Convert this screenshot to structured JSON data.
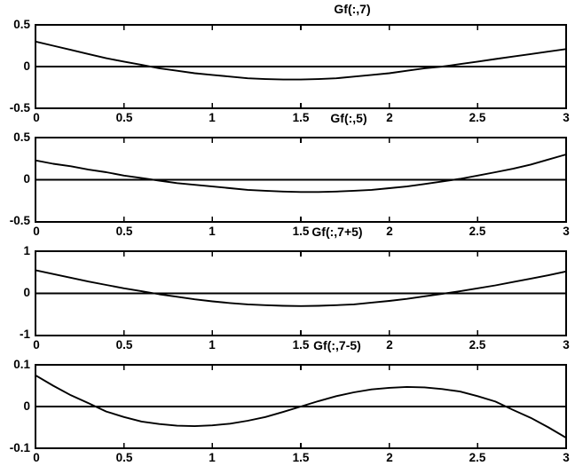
{
  "figure": {
    "background": "#ffffff",
    "ink_color": "#000000"
  },
  "chart_data": [
    {
      "type": "line",
      "title": "Gf(:,7)",
      "xlabel": "",
      "ylabel": "",
      "xlim": [
        0,
        3
      ],
      "ylim": [
        -0.5,
        0.5
      ],
      "x_ticks": [
        0,
        0.5,
        1,
        1.5,
        2,
        2.5,
        3
      ],
      "x_tick_labels": [
        "0",
        "0.5",
        "1",
        "1.5",
        "2",
        "2.5",
        "3"
      ],
      "y_ticks": [
        0.5,
        0,
        -0.5
      ],
      "y_tick_labels": [
        "0.5",
        "0",
        "-0.5"
      ],
      "zero_line": true,
      "grid": false,
      "x": [
        0,
        0.1,
        0.2,
        0.3,
        0.4,
        0.5,
        0.6,
        0.7,
        0.8,
        0.9,
        1.0,
        1.1,
        1.2,
        1.3,
        1.4,
        1.5,
        1.6,
        1.7,
        1.8,
        1.9,
        2.0,
        2.1,
        2.2,
        2.3,
        2.4,
        2.5,
        2.6,
        2.7,
        2.8,
        2.9,
        3.0
      ],
      "y": [
        0.3,
        0.25,
        0.2,
        0.15,
        0.1,
        0.06,
        0.02,
        -0.02,
        -0.05,
        -0.08,
        -0.1,
        -0.12,
        -0.14,
        -0.15,
        -0.155,
        -0.155,
        -0.15,
        -0.14,
        -0.12,
        -0.1,
        -0.08,
        -0.05,
        -0.02,
        0.0,
        0.03,
        0.06,
        0.09,
        0.12,
        0.15,
        0.18,
        0.21
      ]
    },
    {
      "type": "line",
      "title": "Gf(:,5)",
      "xlabel": "",
      "ylabel": "",
      "xlim": [
        0,
        3
      ],
      "ylim": [
        -0.5,
        0.5
      ],
      "x_ticks": [
        0,
        0.5,
        1,
        1.5,
        2,
        2.5,
        3
      ],
      "x_tick_labels": [
        "0",
        "0.5",
        "1",
        "1.5",
        "2",
        "2.5",
        "3"
      ],
      "y_ticks": [
        0.5,
        0,
        -0.5
      ],
      "y_tick_labels": [
        "0.5",
        "0",
        "-0.5"
      ],
      "zero_line": true,
      "grid": false,
      "x": [
        0,
        0.1,
        0.2,
        0.3,
        0.4,
        0.5,
        0.6,
        0.7,
        0.8,
        0.9,
        1.0,
        1.1,
        1.2,
        1.3,
        1.4,
        1.5,
        1.6,
        1.7,
        1.8,
        1.9,
        2.0,
        2.1,
        2.2,
        2.3,
        2.4,
        2.5,
        2.6,
        2.7,
        2.8,
        2.9,
        3.0
      ],
      "y": [
        0.23,
        0.19,
        0.16,
        0.12,
        0.09,
        0.05,
        0.02,
        -0.01,
        -0.04,
        -0.06,
        -0.08,
        -0.1,
        -0.12,
        -0.13,
        -0.14,
        -0.145,
        -0.145,
        -0.14,
        -0.13,
        -0.12,
        -0.1,
        -0.08,
        -0.05,
        -0.02,
        0.01,
        0.05,
        0.09,
        0.13,
        0.18,
        0.24,
        0.3
      ]
    },
    {
      "type": "line",
      "title": "Gf(:,7+5)",
      "xlabel": "",
      "ylabel": "",
      "xlim": [
        0,
        3
      ],
      "ylim": [
        -1,
        1
      ],
      "x_ticks": [
        0,
        0.5,
        1,
        1.5,
        2,
        2.5,
        3
      ],
      "x_tick_labels": [
        "0",
        "0.5",
        "1",
        "1.5",
        "2",
        "2.5",
        "3"
      ],
      "y_ticks": [
        1,
        0,
        -1
      ],
      "y_tick_labels": [
        "1",
        "0",
        "-1"
      ],
      "zero_line": true,
      "grid": false,
      "x": [
        0,
        0.1,
        0.2,
        0.3,
        0.4,
        0.5,
        0.6,
        0.7,
        0.8,
        0.9,
        1.0,
        1.1,
        1.2,
        1.3,
        1.4,
        1.5,
        1.6,
        1.7,
        1.8,
        1.9,
        2.0,
        2.1,
        2.2,
        2.3,
        2.4,
        2.5,
        2.6,
        2.7,
        2.8,
        2.9,
        3.0
      ],
      "y": [
        0.55,
        0.46,
        0.37,
        0.28,
        0.2,
        0.12,
        0.05,
        -0.02,
        -0.08,
        -0.14,
        -0.19,
        -0.23,
        -0.26,
        -0.28,
        -0.295,
        -0.3,
        -0.295,
        -0.28,
        -0.26,
        -0.22,
        -0.18,
        -0.13,
        -0.07,
        -0.01,
        0.05,
        0.12,
        0.19,
        0.27,
        0.35,
        0.43,
        0.52
      ]
    },
    {
      "type": "line",
      "title": "Gf(:,7-5)",
      "xlabel": "",
      "ylabel": "",
      "xlim": [
        0,
        3
      ],
      "ylim": [
        -0.1,
        0.1
      ],
      "x_ticks": [
        0,
        0.5,
        1,
        1.5,
        2,
        2.5,
        3
      ],
      "x_tick_labels": [
        "0",
        "0.5",
        "1",
        "1.5",
        "2",
        "2.5",
        "3"
      ],
      "y_ticks": [
        0.1,
        0,
        -0.1
      ],
      "y_tick_labels": [
        "0.1",
        "0",
        "-0.1"
      ],
      "zero_line": true,
      "grid": false,
      "x": [
        0,
        0.1,
        0.2,
        0.3,
        0.4,
        0.5,
        0.6,
        0.7,
        0.8,
        0.9,
        1.0,
        1.1,
        1.2,
        1.3,
        1.4,
        1.5,
        1.6,
        1.7,
        1.8,
        1.9,
        2.0,
        2.1,
        2.2,
        2.3,
        2.4,
        2.5,
        2.6,
        2.7,
        2.8,
        2.9,
        3.0
      ],
      "y": [
        0.075,
        0.05,
        0.027,
        0.008,
        -0.012,
        -0.025,
        -0.036,
        -0.042,
        -0.046,
        -0.047,
        -0.045,
        -0.041,
        -0.034,
        -0.025,
        -0.013,
        0.0,
        0.013,
        0.025,
        0.034,
        0.041,
        0.045,
        0.047,
        0.046,
        0.042,
        0.036,
        0.025,
        0.012,
        -0.008,
        -0.027,
        -0.05,
        -0.075
      ]
    }
  ]
}
